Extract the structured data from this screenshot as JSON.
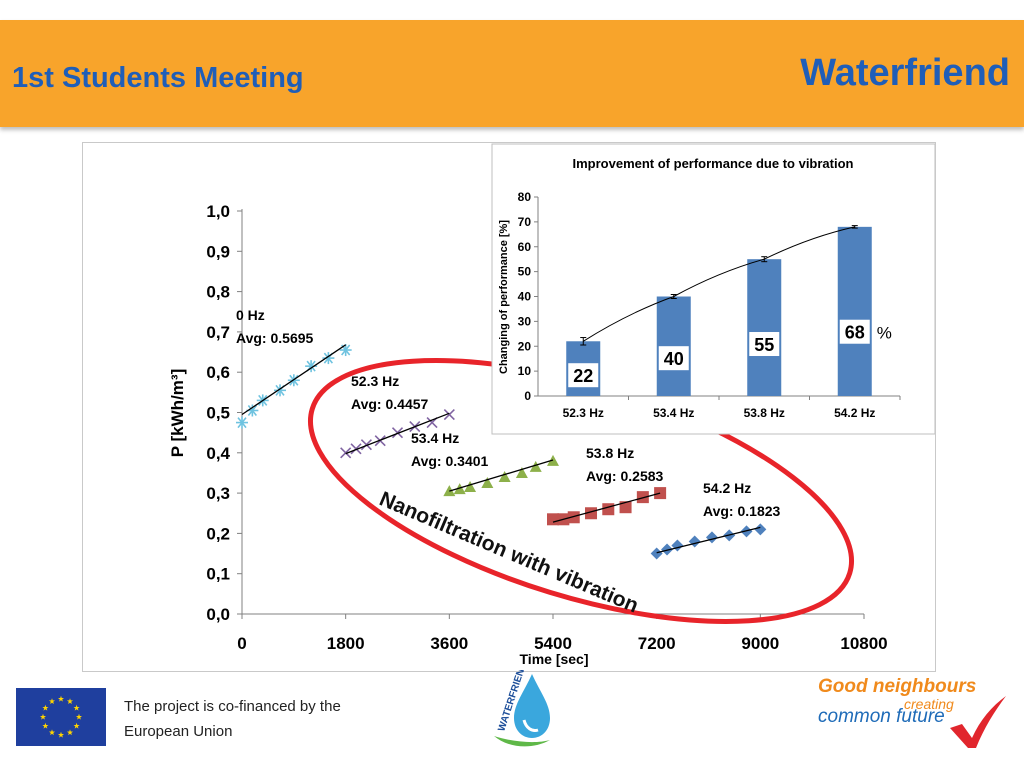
{
  "header": {
    "left_title": "1st Students Meeting",
    "right_title": "Waterfriend",
    "background_color": "#f8a42b",
    "text_color": "#1f5eb8"
  },
  "chart_data": [
    {
      "type": "scatter",
      "ylabel": "P [kWh/m³]",
      "xlabel": "Time [sec]",
      "xlim": [
        0,
        10800
      ],
      "ylim": [
        0,
        1.0
      ],
      "x_ticks": [
        "0",
        "1800",
        "3600",
        "5400",
        "7200",
        "9000",
        "10800"
      ],
      "y_ticks": [
        "0,0",
        "0,1",
        "0,2",
        "0,3",
        "0,4",
        "0,5",
        "0,6",
        "0,7",
        "0,8",
        "0,9",
        "1,0"
      ],
      "ellipse_label": "Nanofiltration with vibration",
      "series": [
        {
          "name": "0 Hz",
          "avg_label": "Avg: 0.5695",
          "marker": "asterisk",
          "color": "#6fc3e0",
          "x": [
            0,
            180,
            360,
            660,
            900,
            1200,
            1500,
            1800
          ],
          "y": [
            0.475,
            0.505,
            0.53,
            0.555,
            0.58,
            0.615,
            0.635,
            0.655
          ],
          "fit": [
            [
              0,
              0.495
            ],
            [
              1800,
              0.668
            ]
          ]
        },
        {
          "name": "52.3 Hz",
          "avg_label": "Avg: 0.4457",
          "marker": "cross",
          "color": "#8064a2",
          "x": [
            1800,
            1980,
            2160,
            2400,
            2700,
            3000,
            3300,
            3600
          ],
          "y": [
            0.4,
            0.41,
            0.42,
            0.43,
            0.45,
            0.465,
            0.475,
            0.495
          ],
          "fit": [
            [
              1800,
              0.398
            ],
            [
              3600,
              0.498
            ]
          ]
        },
        {
          "name": "53.4 Hz",
          "avg_label": "Avg: 0.3401",
          "marker": "triangle",
          "color": "#8db04a",
          "x": [
            3600,
            3780,
            3960,
            4260,
            4560,
            4860,
            5100,
            5400
          ],
          "y": [
            0.305,
            0.31,
            0.315,
            0.325,
            0.34,
            0.35,
            0.365,
            0.38
          ],
          "fit": [
            [
              3600,
              0.305
            ],
            [
              5400,
              0.382
            ]
          ]
        },
        {
          "name": "53.8 Hz",
          "avg_label": "Avg: 0.2583",
          "marker": "square",
          "color": "#c0504d",
          "x": [
            5400,
            5580,
            5760,
            6060,
            6360,
            6660,
            6960,
            7260
          ],
          "y": [
            0.235,
            0.235,
            0.24,
            0.25,
            0.26,
            0.265,
            0.29,
            0.3
          ],
          "fit": [
            [
              5400,
              0.228
            ],
            [
              7260,
              0.3
            ]
          ]
        },
        {
          "name": "54.2 Hz",
          "avg_label": "Avg: 0.1823",
          "marker": "diamond",
          "color": "#4f81bd",
          "x": [
            7200,
            7380,
            7560,
            7860,
            8160,
            8460,
            8760,
            9000
          ],
          "y": [
            0.15,
            0.16,
            0.17,
            0.18,
            0.19,
            0.195,
            0.205,
            0.21
          ],
          "fit": [
            [
              7200,
              0.152
            ],
            [
              9000,
              0.215
            ]
          ]
        }
      ]
    },
    {
      "type": "bar",
      "title": "Improvement of performance due to vibration",
      "ylabel": "Changing of performance [%]",
      "categories": [
        "52.3 Hz",
        "53.4 Hz",
        "53.8 Hz",
        "54.2 Hz"
      ],
      "values": [
        22,
        40,
        55,
        68
      ],
      "value_labels": [
        "22",
        "40",
        "55",
        "68"
      ],
      "unit_label": "%",
      "ylim": [
        0,
        80
      ],
      "y_ticks": [
        "0",
        "10",
        "20",
        "30",
        "40",
        "50",
        "60",
        "70",
        "80"
      ],
      "bar_color": "#4f81bd",
      "trend_line": true,
      "error_bars": [
        1.5,
        0.8,
        1.0,
        0.5
      ]
    }
  ],
  "footer": {
    "cofinance_line1": "The project is co-financed by the",
    "cofinance_line2": "European Union",
    "wf_logo_text": "WATERFRIEND",
    "gn_line1": "Good neighbours",
    "gn_line2": "creating",
    "gn_line3": "common future"
  }
}
